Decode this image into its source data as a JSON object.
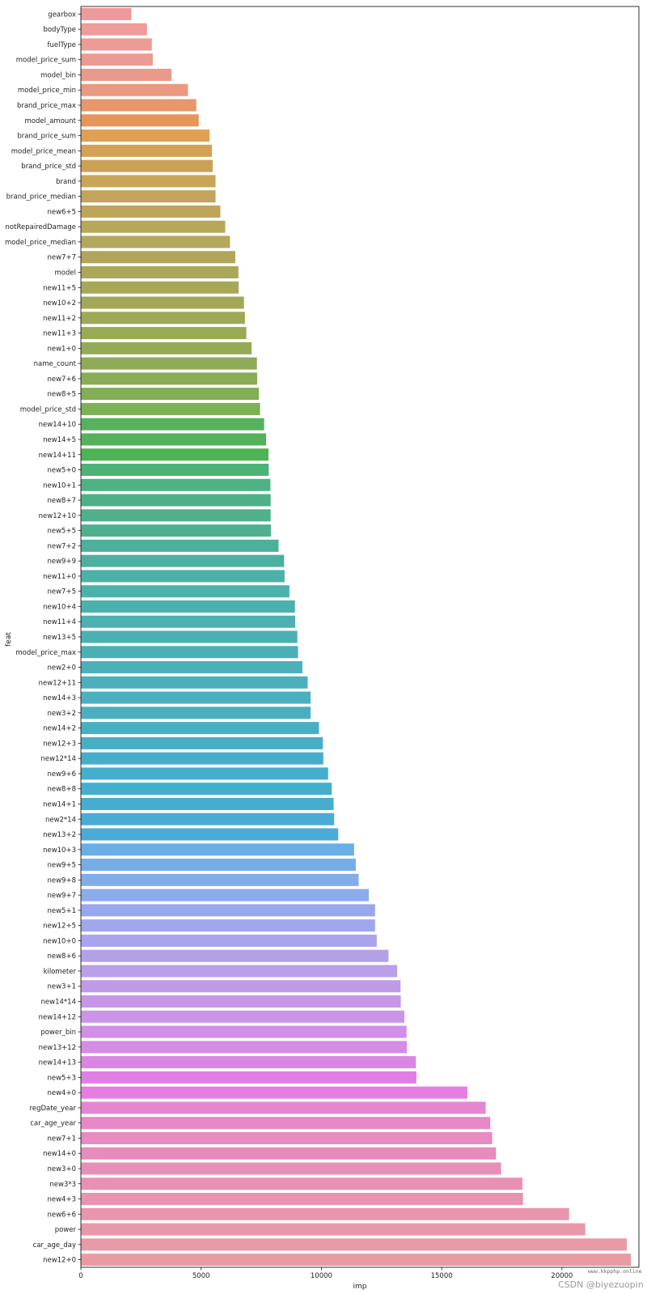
{
  "chart_data": {
    "type": "bar",
    "orientation": "horizontal",
    "xlabel": "imp",
    "ylabel": "feat",
    "xlim": [
      0,
      23200
    ],
    "xticks": [
      0,
      5000,
      10000,
      15000,
      20000
    ],
    "grid": false,
    "categories": [
      "gearbox",
      "bodyType",
      "fuelType",
      "model_price_sum",
      "model_bin",
      "model_price_min",
      "brand_price_max",
      "model_amount",
      "brand_price_sum",
      "model_price_mean",
      "brand_price_std",
      "brand",
      "brand_price_median",
      "new6+5",
      "notRepairedDamage",
      "model_price_median",
      "new7+7",
      "model",
      "new11+5",
      "new10+2",
      "new11+2",
      "new11+3",
      "new1+0",
      "name_count",
      "new7+6",
      "new8+5",
      "model_price_std",
      "new14+10",
      "new14+5",
      "new14+11",
      "new5+0",
      "new10+1",
      "new8+7",
      "new12+10",
      "new5+5",
      "new7+2",
      "new9+9",
      "new11+0",
      "new7+5",
      "new10+4",
      "new11+4",
      "new13+5",
      "model_price_max",
      "new2+0",
      "new12+11",
      "new14+3",
      "new3+2",
      "new14+2",
      "new12+3",
      "new12*14",
      "new9+6",
      "new8+8",
      "new14+1",
      "new2*14",
      "new13+2",
      "new10+3",
      "new9+5",
      "new9+8",
      "new9+7",
      "new5+1",
      "new12+5",
      "new10+0",
      "new8+6",
      "kilometer",
      "new3+1",
      "new14*14",
      "new14+12",
      "power_bin",
      "new13+12",
      "new14+13",
      "new5+3",
      "new4+0",
      "regDate_year",
      "car_age_year",
      "new7+1",
      "new14+0",
      "new3+0",
      "new3*3",
      "new4+3",
      "new6+6",
      "power",
      "car_age_day",
      "new12+0"
    ],
    "values": [
      2100,
      2750,
      2950,
      2990,
      3770,
      4450,
      4800,
      4900,
      5350,
      5450,
      5480,
      5600,
      5600,
      5800,
      6000,
      6200,
      6420,
      6550,
      6560,
      6780,
      6820,
      6880,
      7100,
      7320,
      7330,
      7400,
      7450,
      7620,
      7700,
      7800,
      7810,
      7880,
      7890,
      7890,
      7900,
      8220,
      8450,
      8470,
      8670,
      8900,
      8910,
      9000,
      9030,
      9210,
      9430,
      9550,
      9550,
      9900,
      10060,
      10080,
      10280,
      10430,
      10510,
      10530,
      10700,
      11360,
      11430,
      11550,
      11970,
      12230,
      12230,
      12300,
      12790,
      13150,
      13290,
      13300,
      13450,
      13540,
      13550,
      13930,
      13950,
      16070,
      16830,
      17020,
      17100,
      17260,
      17470,
      18360,
      18380,
      20300,
      20970,
      22700,
      22870
    ],
    "colors": [
      "#ee9a9c",
      "#ee9b99",
      "#ec9b96",
      "#eb9b92",
      "#e99a8a",
      "#e9997f",
      "#e6976c",
      "#e79559",
      "#dfa055",
      "#d4a155",
      "#cba155",
      "#c9a559",
      "#c4a45c",
      "#bea559",
      "#b8a65a",
      "#b3a85b",
      "#b0a55a",
      "#aba759",
      "#a7a857",
      "#a2a856",
      "#9ea856",
      "#99aa54",
      "#94ab55",
      "#8fab57",
      "#89ad56",
      "#82ae57",
      "#7cb157",
      "#56b25d",
      "#55b25b",
      "#4db354",
      "#4db276",
      "#4eb285",
      "#4eb086",
      "#4fb08b",
      "#4fb08e",
      "#4db09a",
      "#4cb0a1",
      "#4cb1a7",
      "#4bb1ad",
      "#4ab1ae",
      "#4bb1b1",
      "#4bb0b3",
      "#4bb0b5",
      "#4bb0b8",
      "#4bb0bb",
      "#4ab0be",
      "#49afc0",
      "#48afc2",
      "#47afc5",
      "#46aec8",
      "#45aecb",
      "#45aece",
      "#47adcf",
      "#49acd2",
      "#4aabd6",
      "#6aaee6",
      "#76ade8",
      "#81ade9",
      "#8caaec",
      "#97a8ec",
      "#a0a7ec",
      "#a9a4ec",
      "#b3a1e6",
      "#ba9fe7",
      "#c19ae7",
      "#c696e7",
      "#cc94e6",
      "#d18fe6",
      "#d48ce5",
      "#da86e4",
      "#e07fe3",
      "#e57ee0",
      "#e685d0",
      "#e789c7",
      "#e78bc0",
      "#e78cbc",
      "#e88fb8",
      "#e891b4",
      "#e893b0",
      "#e896ad",
      "#e998aa",
      "#e89aa6",
      "#e89ba3"
    ]
  },
  "watermark": {
    "text": "CSDN @biyezuopin",
    "site": "www.kkpphp.online"
  }
}
